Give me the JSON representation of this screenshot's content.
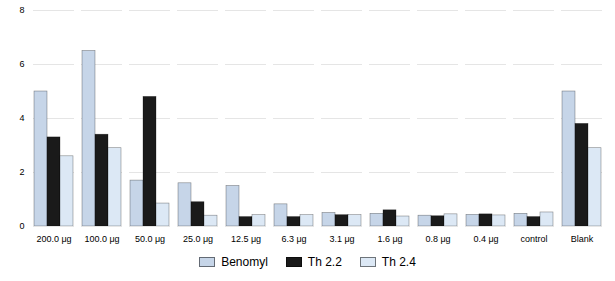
{
  "chart_data": {
    "type": "bar",
    "categories": [
      "200.0 μg",
      "100.0 μg",
      "50.0 μg",
      "25.0 μg",
      "12.5 μg",
      "6.3 μg",
      "3.1 μg",
      "1.6 μg",
      "0.8 μg",
      "0.4 μg",
      "control",
      "Blank"
    ],
    "series": [
      {
        "name": "Benomyl",
        "color": "#c6d5e8",
        "values": [
          5.0,
          6.5,
          1.7,
          1.6,
          1.5,
          0.82,
          0.5,
          0.47,
          0.4,
          0.43,
          0.47,
          5.0
        ]
      },
      {
        "name": "Th 2.2",
        "color": "#1a1a1a",
        "values": [
          3.3,
          3.4,
          4.8,
          0.9,
          0.35,
          0.35,
          0.42,
          0.6,
          0.38,
          0.45,
          0.35,
          3.8
        ]
      },
      {
        "name": "Th 2.4",
        "color": "#dce8f5",
        "values": [
          2.6,
          2.9,
          0.85,
          0.4,
          0.42,
          0.42,
          0.42,
          0.37,
          0.45,
          0.41,
          0.52,
          2.9
        ]
      }
    ],
    "ylim": [
      0,
      8
    ],
    "yticks": [
      0,
      2,
      4,
      6,
      8
    ],
    "grid": true,
    "legend": "bottom"
  }
}
